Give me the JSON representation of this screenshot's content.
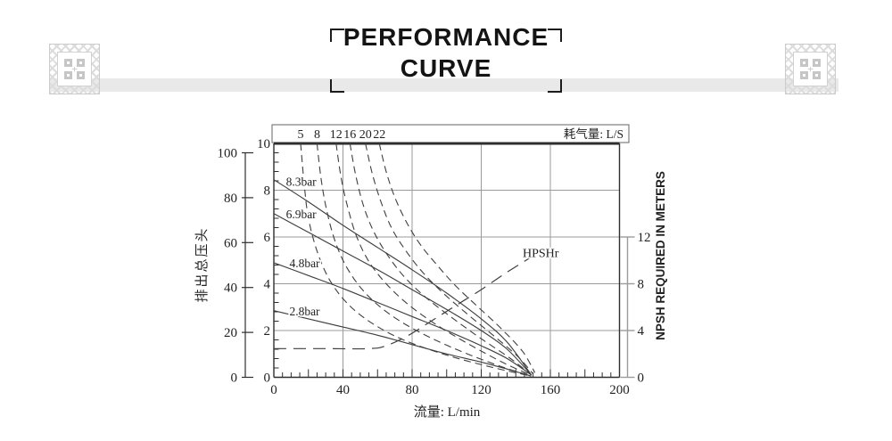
{
  "header": {
    "title_line1": "PERFORMANCE",
    "title_line2": "CURVE"
  },
  "colors": {
    "curve": "#3f3f3f",
    "grid": "#9b9b9b",
    "border": "#2e2e2e",
    "strip_border": "#666666",
    "bar": "#e9e9e9",
    "title": "#141414"
  },
  "chart_data": {
    "type": "line",
    "title": "PERFORMANCE CURVE",
    "x_axis": {
      "label": "流量: L/min",
      "min": 0,
      "max": 200,
      "major_tick_labels": [
        0,
        40,
        80,
        120,
        160,
        200
      ],
      "minor_step": 5,
      "gridlines": [
        40,
        80,
        120,
        160
      ]
    },
    "y_axis_outer": {
      "label": "排出总压头",
      "min": 0,
      "max": 100,
      "tick_labels": [
        0,
        20,
        40,
        60,
        80,
        100
      ]
    },
    "y_axis_inner": {
      "min": 0,
      "max": 10,
      "tick_labels": [
        0,
        2,
        4,
        6,
        8,
        10
      ],
      "minor_step": 0.4,
      "gridlines": [
        2,
        4,
        6,
        8
      ]
    },
    "y_axis_right": {
      "label": "NPSH REQUIRED IN METERS",
      "min": 0,
      "max": 12,
      "tick_labels": [
        0,
        4,
        8,
        12
      ]
    },
    "air_consumption_box_label": "耗气量: L/S",
    "air_consumption_series": [
      {
        "label": "5",
        "points": [
          [
            15.5,
            10
          ],
          [
            17.5,
            8.3
          ],
          [
            20,
            6.8
          ],
          [
            25,
            5.4
          ],
          [
            32,
            4.2
          ],
          [
            42,
            3.2
          ],
          [
            56,
            2.35
          ],
          [
            75,
            1.6
          ],
          [
            100,
            0.95
          ],
          [
            125,
            0.45
          ],
          [
            147,
            0.08
          ]
        ]
      },
      {
        "label": "8",
        "points": [
          [
            25,
            10
          ],
          [
            27.5,
            8.4
          ],
          [
            31,
            7
          ],
          [
            36,
            5.7
          ],
          [
            43,
            4.6
          ],
          [
            53,
            3.6
          ],
          [
            67,
            2.7
          ],
          [
            85,
            1.9
          ],
          [
            107,
            1.15
          ],
          [
            130,
            0.5
          ],
          [
            148,
            0.08
          ]
        ]
      },
      {
        "label": "12",
        "points": [
          [
            36,
            10
          ],
          [
            39,
            8.5
          ],
          [
            43,
            7.2
          ],
          [
            48,
            6
          ],
          [
            55,
            4.95
          ],
          [
            65,
            4
          ],
          [
            78,
            3.1
          ],
          [
            94,
            2.25
          ],
          [
            112,
            1.45
          ],
          [
            132,
            0.65
          ],
          [
            148.5,
            0.1
          ]
        ]
      },
      {
        "label": "16",
        "points": [
          [
            44,
            10
          ],
          [
            47.5,
            8.6
          ],
          [
            52,
            7.3
          ],
          [
            58,
            6.2
          ],
          [
            66,
            5.2
          ],
          [
            76,
            4.25
          ],
          [
            89,
            3.35
          ],
          [
            104,
            2.5
          ],
          [
            120,
            1.65
          ],
          [
            137,
            0.8
          ],
          [
            149,
            0.1
          ]
        ]
      },
      {
        "label": "20",
        "points": [
          [
            53,
            10
          ],
          [
            57,
            8.7
          ],
          [
            62,
            7.5
          ],
          [
            68,
            6.4
          ],
          [
            76,
            5.45
          ],
          [
            86,
            4.5
          ],
          [
            98,
            3.6
          ],
          [
            112,
            2.7
          ],
          [
            126,
            1.85
          ],
          [
            141,
            0.9
          ],
          [
            150,
            0.15
          ]
        ]
      },
      {
        "label": "22",
        "points": [
          [
            61,
            10
          ],
          [
            65,
            8.8
          ],
          [
            70,
            7.7
          ],
          [
            77,
            6.6
          ],
          [
            85,
            5.65
          ],
          [
            95,
            4.75
          ],
          [
            106,
            3.85
          ],
          [
            119,
            2.95
          ],
          [
            132,
            2.05
          ],
          [
            144,
            1.1
          ],
          [
            151,
            0.2
          ]
        ]
      }
    ],
    "discharge_pressure_series": [
      {
        "label": "8.3bar",
        "label_pos": [
          7,
          8.35
        ],
        "points": [
          [
            0,
            8.45
          ],
          [
            20,
            7.5
          ],
          [
            40,
            6.5
          ],
          [
            60,
            5.55
          ],
          [
            80,
            4.6
          ],
          [
            100,
            3.6
          ],
          [
            120,
            2.5
          ],
          [
            135,
            1.5
          ],
          [
            149,
            0.1
          ]
        ]
      },
      {
        "label": "6.9bar",
        "label_pos": [
          7,
          6.95
        ],
        "points": [
          [
            0,
            7
          ],
          [
            20,
            6.2
          ],
          [
            40,
            5.4
          ],
          [
            60,
            4.6
          ],
          [
            80,
            3.75
          ],
          [
            100,
            2.9
          ],
          [
            120,
            2
          ],
          [
            135,
            1.2
          ],
          [
            149,
            0.1
          ]
        ]
      },
      {
        "label": "4.8bar",
        "label_pos": [
          9,
          4.85
        ],
        "points": [
          [
            0,
            4.9
          ],
          [
            20,
            4.35
          ],
          [
            40,
            3.8
          ],
          [
            60,
            3.2
          ],
          [
            80,
            2.6
          ],
          [
            100,
            2
          ],
          [
            120,
            1.35
          ],
          [
            135,
            0.8
          ],
          [
            149,
            0.1
          ]
        ]
      },
      {
        "label": "2.8bar",
        "label_pos": [
          9,
          2.8
        ],
        "points": [
          [
            0,
            2.85
          ],
          [
            20,
            2.5
          ],
          [
            40,
            2.15
          ],
          [
            60,
            1.8
          ],
          [
            80,
            1.4
          ],
          [
            100,
            1
          ],
          [
            120,
            0.65
          ],
          [
            135,
            0.35
          ],
          [
            149,
            0.05
          ]
        ]
      }
    ],
    "npshr_series": {
      "label": "HPSHr",
      "axis": "right",
      "label_pos": [
        144,
        10.6
      ],
      "points": [
        [
          0,
          2.45
        ],
        [
          30,
          2.45
        ],
        [
          55,
          2.45
        ],
        [
          65,
          2.7
        ],
        [
          78,
          3.6
        ],
        [
          92,
          4.9
        ],
        [
          106,
          6.2
        ],
        [
          120,
          7.5
        ],
        [
          134,
          8.9
        ],
        [
          148,
          10.2
        ]
      ]
    }
  }
}
